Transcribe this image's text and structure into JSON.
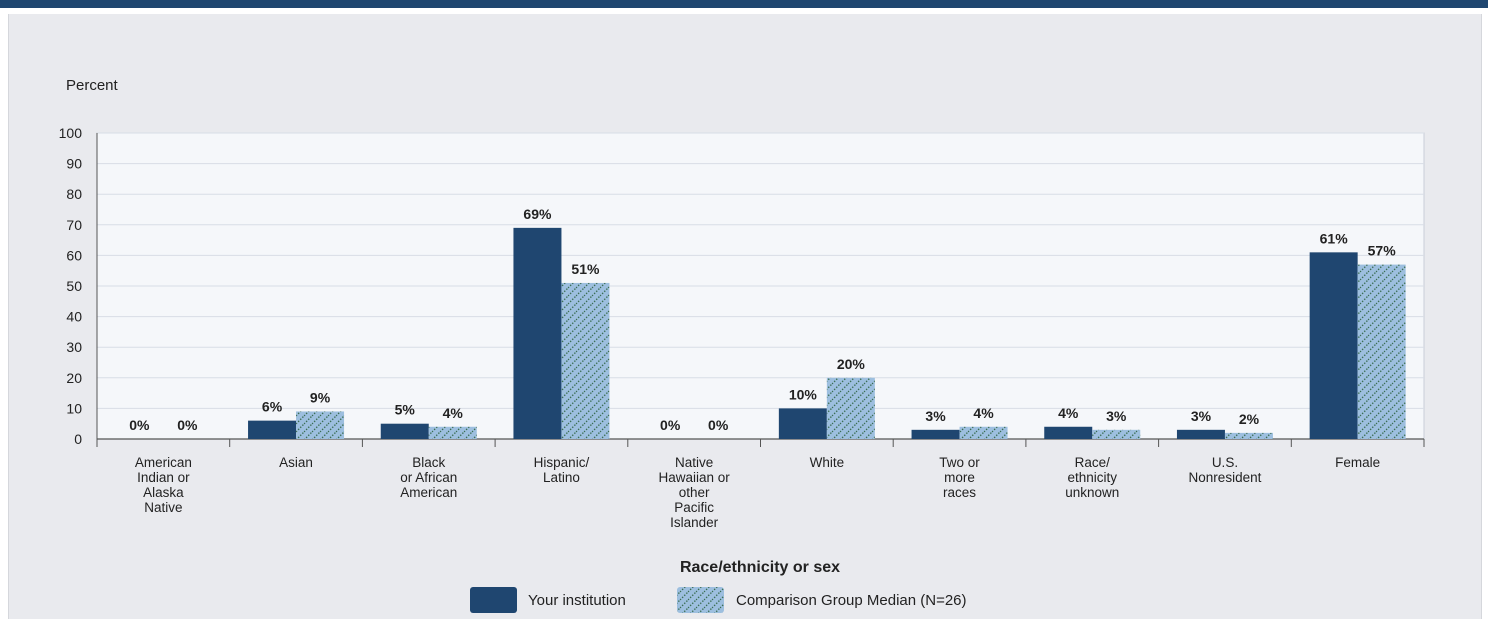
{
  "colors": {
    "institution": "#1f4670",
    "comparison": "#9dbfdf",
    "comparison_hatch": "#3a6d52",
    "top_rule": "#1f4670",
    "panel": "#e9eaee",
    "plot_area": "#f5f7fa",
    "grid": "#d8dde6"
  },
  "chart_data": {
    "type": "bar",
    "ylabel": "Percent",
    "xlabel": "Race/ethnicity or sex",
    "ylim": [
      0,
      100
    ],
    "yticks": [
      "100",
      "90",
      "80",
      "70",
      "60",
      "50",
      "40",
      "30",
      "20",
      "10",
      "0"
    ],
    "grid": true,
    "legend_position": "bottom-center",
    "categories": [
      [
        "American",
        "Indian or",
        "Alaska",
        "Native"
      ],
      [
        "Asian"
      ],
      [
        "Black",
        "or African",
        "American"
      ],
      [
        "Hispanic/",
        "Latino"
      ],
      [
        "Native",
        "Hawaiian or",
        "other",
        "Pacific",
        "Islander"
      ],
      [
        "White"
      ],
      [
        "Two or",
        "more",
        "races"
      ],
      [
        "Race/",
        "ethnicity",
        "unknown"
      ],
      [
        "U.S.",
        "Nonresident"
      ],
      [
        "Female"
      ]
    ],
    "series": [
      {
        "name": "Your institution",
        "values": [
          0,
          6,
          5,
          69,
          0,
          10,
          3,
          4,
          3,
          61
        ],
        "labels": [
          "0%",
          "6%",
          "5%",
          "69%",
          "0%",
          "10%",
          "3%",
          "4%",
          "3%",
          "61%"
        ]
      },
      {
        "name": "Comparison Group Median (N=26)",
        "values": [
          0,
          9,
          4,
          51,
          0,
          20,
          4,
          3,
          2,
          57
        ],
        "labels": [
          "0%",
          "9%",
          "4%",
          "51%",
          "0%",
          "20%",
          "4%",
          "3%",
          "2%",
          "57%"
        ]
      }
    ]
  }
}
